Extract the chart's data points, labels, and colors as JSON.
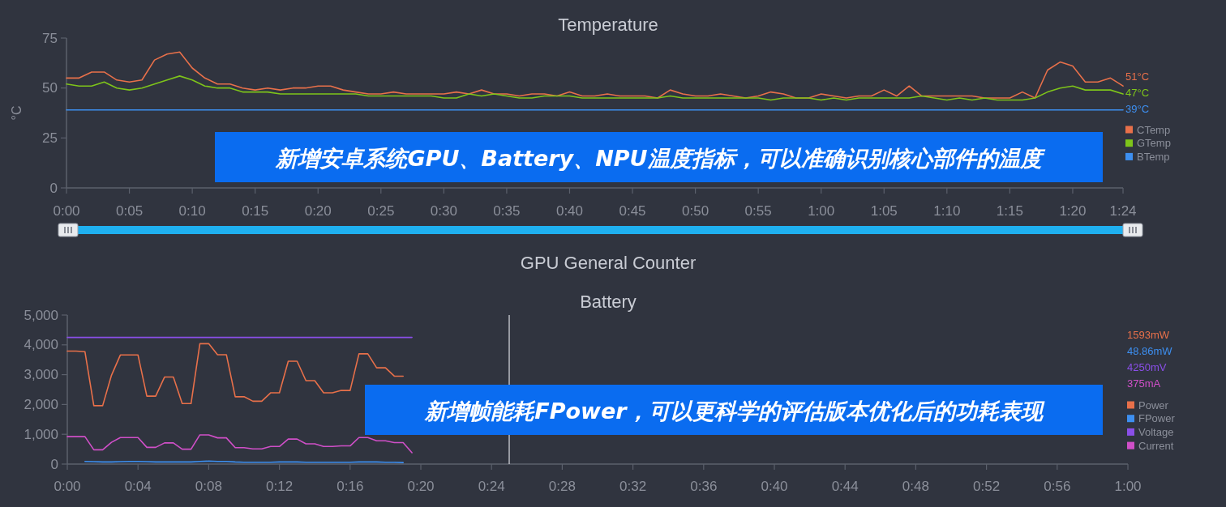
{
  "chart_data": [
    {
      "type": "line",
      "title": "Temperature",
      "ylabel": "°C",
      "legend": "right",
      "grid": false,
      "marker": "none",
      "line_style": "solid",
      "x": [
        0,
        1,
        2,
        3,
        4,
        5,
        6,
        7,
        8,
        9,
        10,
        11,
        12,
        13,
        14,
        15,
        16,
        17,
        18,
        19,
        20,
        21,
        22,
        23,
        24,
        25,
        26,
        27,
        28,
        29,
        30,
        31,
        32,
        33,
        34,
        35,
        36,
        37,
        38,
        39,
        40,
        41,
        42,
        43,
        44,
        45,
        46,
        47,
        48,
        49,
        50,
        51,
        52,
        53,
        54,
        55,
        56,
        57,
        58,
        59,
        60,
        61,
        62,
        63,
        64,
        65,
        66,
        67,
        68,
        69,
        70,
        71,
        72,
        73,
        74,
        75,
        76,
        77,
        78,
        79,
        80,
        81,
        82,
        83,
        84
      ],
      "xlim": [
        0,
        84
      ],
      "xticks": [
        {
          "value": 0,
          "label": "0:00"
        },
        {
          "value": 5,
          "label": "0:05"
        },
        {
          "value": 10,
          "label": "0:10"
        },
        {
          "value": 15,
          "label": "0:15"
        },
        {
          "value": 20,
          "label": "0:20"
        },
        {
          "value": 25,
          "label": "0:25"
        },
        {
          "value": 30,
          "label": "0:30"
        },
        {
          "value": 35,
          "label": "0:35"
        },
        {
          "value": 40,
          "label": "0:40"
        },
        {
          "value": 45,
          "label": "0:45"
        },
        {
          "value": 50,
          "label": "0:50"
        },
        {
          "value": 55,
          "label": "0:55"
        },
        {
          "value": 60,
          "label": "1:00"
        },
        {
          "value": 65,
          "label": "1:05"
        },
        {
          "value": 70,
          "label": "1:10"
        },
        {
          "value": 75,
          "label": "1:15"
        },
        {
          "value": 80,
          "label": "1:20"
        },
        {
          "value": 84,
          "label": "1:24"
        }
      ],
      "ylim": [
        0,
        75
      ],
      "yticks": [
        0,
        25,
        50,
        75
      ],
      "series": [
        {
          "name": "CTemp",
          "color": "#e8704a",
          "values": [
            55,
            55,
            58,
            58,
            54,
            53,
            54,
            64,
            67,
            68,
            60,
            55,
            52,
            52,
            50,
            49,
            50,
            49,
            50,
            50,
            51,
            51,
            49,
            48,
            47,
            47,
            48,
            47,
            47,
            47,
            47,
            48,
            47,
            49,
            47,
            47,
            46,
            47,
            47,
            46,
            48,
            46,
            46,
            47,
            46,
            46,
            46,
            45,
            49,
            47,
            46,
            46,
            47,
            46,
            45,
            46,
            48,
            47,
            45,
            45,
            47,
            46,
            45,
            46,
            46,
            49,
            46,
            51,
            46,
            46,
            46,
            46,
            46,
            45,
            45,
            45,
            48,
            45,
            59,
            63,
            61,
            53,
            53,
            55,
            51
          ]
        },
        {
          "name": "GTemp",
          "color": "#7ec41a",
          "values": [
            52,
            51,
            51,
            53,
            50,
            49,
            50,
            52,
            54,
            56,
            54,
            51,
            50,
            50,
            48,
            48,
            48,
            47,
            47,
            47,
            47,
            47,
            47,
            47,
            46,
            46,
            46,
            46,
            46,
            46,
            45,
            45,
            47,
            46,
            47,
            46,
            45,
            45,
            46,
            46,
            46,
            45,
            45,
            45,
            45,
            45,
            45,
            45,
            46,
            45,
            45,
            45,
            45,
            45,
            45,
            45,
            44,
            45,
            45,
            45,
            44,
            45,
            44,
            45,
            45,
            45,
            45,
            45,
            46,
            45,
            44,
            45,
            44,
            45,
            44,
            44,
            44,
            45,
            48,
            50,
            51,
            49,
            49,
            49,
            47
          ]
        },
        {
          "name": "BTemp",
          "color": "#3d8ff0",
          "values": [
            39,
            39,
            39,
            39,
            39,
            39,
            39,
            39,
            39,
            39,
            39,
            39,
            39,
            39,
            39,
            39,
            39,
            39,
            39,
            39,
            39,
            39,
            39,
            39,
            39,
            39,
            39,
            39,
            39,
            39,
            39,
            39,
            39,
            39,
            39,
            39,
            39,
            39,
            39,
            39,
            39,
            39,
            39,
            39,
            39,
            39,
            39,
            39,
            39,
            39,
            39,
            39,
            39,
            39,
            39,
            39,
            39,
            39,
            39,
            39,
            39,
            39,
            39,
            39,
            39,
            39,
            39,
            39,
            39,
            39,
            39,
            39,
            39,
            39,
            39,
            39,
            39,
            39,
            39,
            39,
            39,
            39,
            39,
            39,
            39
          ]
        }
      ],
      "annotations": [
        "51°C",
        "47°C",
        "39°C",
        "新增安卓系统GPU、Battery、NPU温度指标，可以准确识别核心部件的温度"
      ]
    },
    {
      "type": "other",
      "title": "GPU General Counter"
    },
    {
      "type": "line",
      "title": "Battery",
      "legend": "right",
      "grid": false,
      "marker": "none",
      "line_style": "solid",
      "x": [
        0,
        0.5,
        1,
        1.5,
        2,
        2.5,
        3,
        3.5,
        4,
        4.5,
        5,
        5.5,
        6,
        6.5,
        7,
        7.5,
        8,
        8.5,
        9,
        9.5,
        10,
        10.5,
        11,
        11.5,
        12,
        12.5,
        13,
        13.5,
        14,
        14.5,
        15,
        15.5,
        16,
        16.5,
        17,
        17.5,
        18,
        18.5,
        19,
        19.5
      ],
      "xlim": [
        0,
        60
      ],
      "xticks": [
        {
          "value": 0,
          "label": "0:00"
        },
        {
          "value": 4,
          "label": "0:04"
        },
        {
          "value": 8,
          "label": "0:08"
        },
        {
          "value": 12,
          "label": "0:12"
        },
        {
          "value": 16,
          "label": "0:16"
        },
        {
          "value": 20,
          "label": "0:20"
        },
        {
          "value": 24,
          "label": "0:24"
        },
        {
          "value": 28,
          "label": "0:28"
        },
        {
          "value": 32,
          "label": "0:32"
        },
        {
          "value": 36,
          "label": "0:36"
        },
        {
          "value": 40,
          "label": "0:40"
        },
        {
          "value": 44,
          "label": "0:44"
        },
        {
          "value": 48,
          "label": "0:48"
        },
        {
          "value": 52,
          "label": "0:52"
        },
        {
          "value": 56,
          "label": "0:56"
        },
        {
          "value": 60,
          "label": "1:00"
        }
      ],
      "ylim": [
        0,
        5000
      ],
      "yticks": [
        0,
        {
          "value": 1000,
          "label": "1,000"
        },
        {
          "value": 2000,
          "label": "2,000"
        },
        {
          "value": 3000,
          "label": "3,000"
        },
        {
          "value": 4000,
          "label": "4,000"
        },
        {
          "value": 5000,
          "label": "5,000"
        }
      ],
      "series": [
        {
          "name": "Power",
          "color": "#e8704a",
          "values": [
            3790,
            3790,
            3770,
            1960,
            1960,
            2980,
            3660,
            3660,
            3660,
            2280,
            2280,
            2920,
            2920,
            2030,
            2030,
            4040,
            4040,
            3670,
            3670,
            2260,
            2260,
            2110,
            2110,
            2390,
            2390,
            3450,
            3450,
            2800,
            2800,
            2390,
            2390,
            2470,
            2470,
            3700,
            3700,
            3230,
            3230,
            2950,
            2950,
            null
          ]
        },
        {
          "name": "FPower",
          "color": "#3d8ff0",
          "x": [
            1,
            1.5,
            2,
            2.5,
            3,
            3.5,
            4,
            4.5,
            5,
            5.5,
            6,
            6.5,
            7,
            7.5,
            8,
            8.5,
            9,
            9.5,
            10,
            10.5,
            11,
            11.5,
            12,
            12.5,
            13,
            13.5,
            14,
            14.5,
            15,
            15.5,
            16,
            16.5,
            17,
            17.5,
            18,
            18.5,
            19
          ],
          "values": [
            90,
            80,
            70,
            70,
            80,
            90,
            90,
            80,
            70,
            70,
            70,
            70,
            70,
            90,
            100,
            90,
            90,
            70,
            60,
            60,
            60,
            60,
            70,
            70,
            70,
            60,
            60,
            60,
            60,
            60,
            60,
            70,
            70,
            70,
            60,
            60,
            50
          ]
        },
        {
          "name": "Voltage",
          "color": "#8a4fe8",
          "values": [
            4250,
            4250,
            4250,
            4250,
            4250,
            4250,
            4250,
            4250,
            4250,
            4250,
            4250,
            4250,
            4250,
            4250,
            4250,
            4250,
            4250,
            4250,
            4250,
            4250,
            4250,
            4250,
            4250,
            4250,
            4250,
            4250,
            4250,
            4250,
            4250,
            4250,
            4250,
            4250,
            4250,
            4250,
            4250,
            4250,
            4250,
            4250,
            4250,
            4250
          ]
        },
        {
          "name": "Current",
          "color": "#d04fc8",
          "values": [
            920,
            920,
            920,
            480,
            480,
            730,
            890,
            890,
            890,
            560,
            560,
            710,
            710,
            500,
            500,
            980,
            980,
            880,
            880,
            550,
            550,
            510,
            510,
            590,
            590,
            840,
            840,
            680,
            680,
            590,
            590,
            610,
            610,
            890,
            890,
            780,
            780,
            720,
            720,
            380
          ]
        }
      ],
      "ref_lines": [
        {
          "axis": "x",
          "value": 25,
          "color": "#cfd2d8"
        }
      ],
      "annotations": [
        "1593mW",
        "48.86mW",
        "4250mV",
        "375mA",
        "新增帧能耗FPower，可以更科学的评估版本优化后的功耗表现"
      ]
    }
  ]
}
